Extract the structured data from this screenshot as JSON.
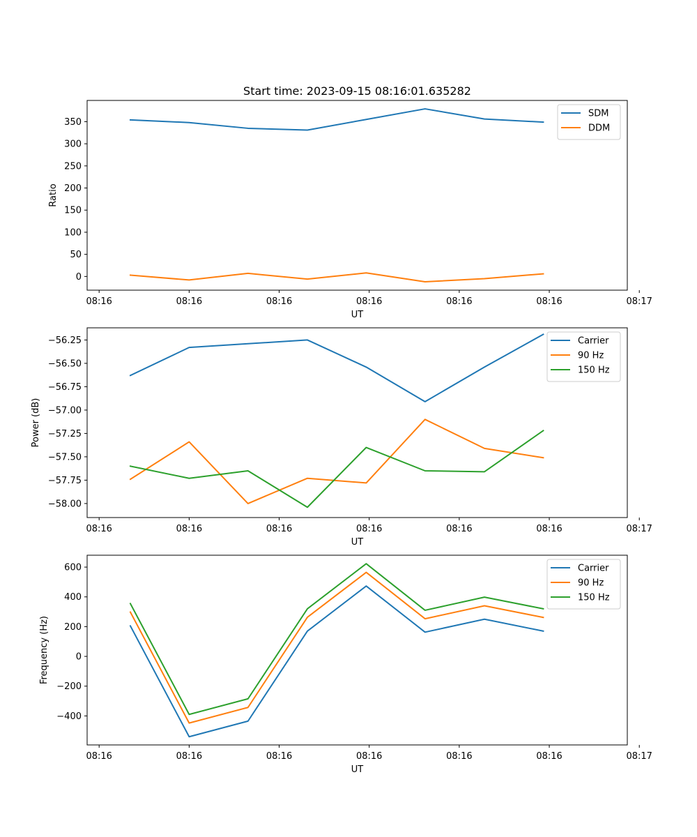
{
  "figure": {
    "title": "Start time: 2023-09-15 08:16:01.635282"
  },
  "colors": {
    "blue": "#1f77b4",
    "orange": "#ff7f0e",
    "green": "#2ca02c"
  },
  "chart_data": [
    {
      "type": "line",
      "title": "Start time: 2023-09-15 08:16:01.635282",
      "xlabel": "UT",
      "ylabel": "Ratio",
      "xlim": [
        -0.5,
        8.5
      ],
      "ylim": [
        -31,
        398
      ],
      "yticks": [
        0,
        50,
        100,
        150,
        200,
        250,
        300,
        350
      ],
      "xtick_positions": [
        -0.3,
        1.2,
        2.7,
        4.2,
        5.7,
        7.2,
        8.7
      ],
      "xtick_labels": [
        "08:16",
        "08:16",
        "08:16",
        "08:16",
        "08:16",
        "08:16",
        "08:17"
      ],
      "x": [
        0.22,
        1.2,
        2.18,
        3.17,
        4.15,
        5.13,
        6.12,
        7.1
      ],
      "legend_position": "upper right",
      "series": [
        {
          "name": "SDM",
          "color_key": "blue",
          "values": [
            354,
            348,
            335,
            331,
            355,
            379,
            356,
            349
          ]
        },
        {
          "name": "DDM",
          "color_key": "orange",
          "values": [
            3,
            -8,
            7,
            -6,
            8,
            -12,
            -5,
            6
          ]
        }
      ]
    },
    {
      "type": "line",
      "title": "",
      "xlabel": "UT",
      "ylabel": "Power (dB)",
      "xlim": [
        -0.5,
        8.5
      ],
      "ylim": [
        -58.15,
        -56.12
      ],
      "yticks": [
        -58.0,
        -57.75,
        -57.5,
        -57.25,
        -57.0,
        -56.75,
        -56.5,
        -56.25
      ],
      "ytick_labels": [
        "−58.00",
        "−57.75",
        "−57.50",
        "−57.25",
        "−57.00",
        "−56.75",
        "−56.50",
        "−56.25"
      ],
      "xtick_positions": [
        -0.3,
        1.2,
        2.7,
        4.2,
        5.7,
        7.2,
        8.7
      ],
      "xtick_labels": [
        "08:16",
        "08:16",
        "08:16",
        "08:16",
        "08:16",
        "08:16",
        "08:17"
      ],
      "x": [
        0.22,
        1.2,
        2.18,
        3.17,
        4.15,
        5.13,
        6.12,
        7.1
      ],
      "legend_position": "upper right",
      "series": [
        {
          "name": "Carrier",
          "color_key": "blue",
          "values": [
            -56.63,
            -56.33,
            -56.29,
            -56.25,
            -56.54,
            -56.91,
            -56.54,
            -56.19
          ]
        },
        {
          "name": "90 Hz",
          "color_key": "orange",
          "values": [
            -57.74,
            -57.34,
            -58.0,
            -57.73,
            -57.78,
            -57.1,
            -57.41,
            -57.51
          ]
        },
        {
          "name": "150 Hz",
          "color_key": "green",
          "values": [
            -57.6,
            -57.73,
            -57.65,
            -58.04,
            -57.4,
            -57.65,
            -57.66,
            -57.22
          ]
        }
      ]
    },
    {
      "type": "line",
      "title": "",
      "xlabel": "UT",
      "ylabel": "Frequency (Hz)",
      "xlim": [
        -0.5,
        8.5
      ],
      "ylim": [
        -595,
        680
      ],
      "yticks": [
        -400,
        -200,
        0,
        200,
        400,
        600
      ],
      "ytick_labels": [
        "−400",
        "−200",
        "0",
        "200",
        "400",
        "600"
      ],
      "xtick_positions": [
        -0.3,
        1.2,
        2.7,
        4.2,
        5.7,
        7.2,
        8.7
      ],
      "xtick_labels": [
        "08:16",
        "08:16",
        "08:16",
        "08:16",
        "08:16",
        "08:16",
        "08:17"
      ],
      "x": [
        0.22,
        1.2,
        2.18,
        3.17,
        4.15,
        5.13,
        6.12,
        7.1
      ],
      "legend_position": "upper right",
      "series": [
        {
          "name": "Carrier",
          "color_key": "blue",
          "values": [
            205,
            -540,
            -435,
            170,
            473,
            163,
            250,
            170
          ]
        },
        {
          "name": "90 Hz",
          "color_key": "orange",
          "values": [
            298,
            -448,
            -343,
            263,
            565,
            253,
            340,
            262
          ]
        },
        {
          "name": "150 Hz",
          "color_key": "green",
          "values": [
            355,
            -390,
            -285,
            320,
            623,
            310,
            398,
            320
          ]
        }
      ]
    }
  ]
}
